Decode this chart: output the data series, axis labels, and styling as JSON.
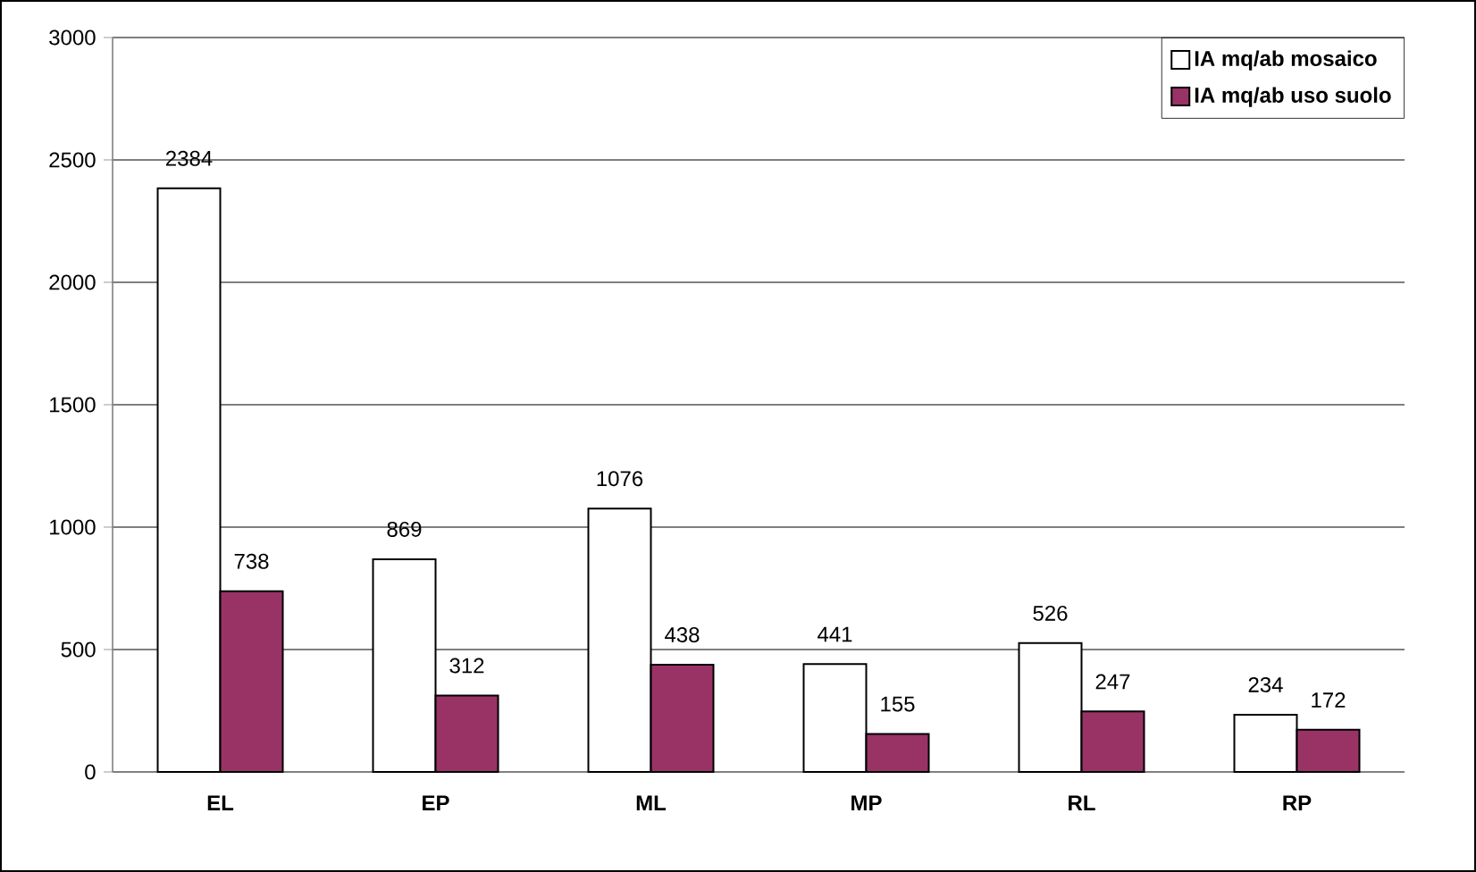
{
  "chart_data": {
    "type": "bar",
    "categories": [
      "EL",
      "EP",
      "ML",
      "MP",
      "RL",
      "RP"
    ],
    "series": [
      {
        "name": "IA mq/ab mosaico",
        "color": "#ffffff",
        "values": [
          2384,
          869,
          1076,
          441,
          526,
          234
        ]
      },
      {
        "name": "IA mq/ab uso suolo",
        "color": "#993366",
        "values": [
          738,
          312,
          438,
          155,
          247,
          172
        ]
      }
    ],
    "ylim": [
      0,
      3000
    ],
    "yticks": [
      0,
      500,
      1000,
      1500,
      2000,
      2500,
      3000
    ],
    "grid": "y",
    "legend": "top right",
    "data_labels": true
  }
}
